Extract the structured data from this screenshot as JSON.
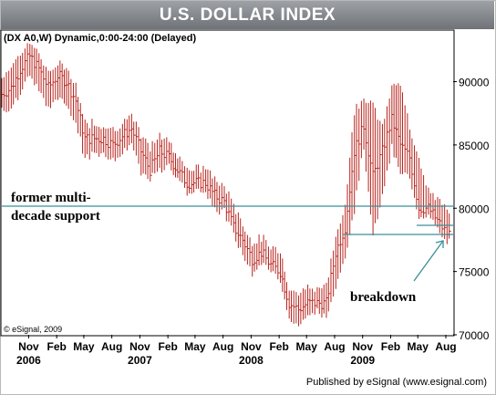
{
  "page": {
    "title": "U.S. DOLLAR INDEX",
    "chart_header": "(DX A0,W) Dynamic,0:00-24:00 (Delayed)",
    "copyright": "© eSignal, 2009",
    "footer": "Published by eSignal (www.esignal.com)",
    "annotation_support_line1": "former multi-",
    "annotation_support_line2": "decade support",
    "annotation_breakdown": "breakdown"
  },
  "colors": {
    "bars": "#b8231c",
    "support_line": "#3a8f96",
    "arrow": "#3a8f96",
    "title_band": "#80848a",
    "grid_border": "#000000"
  },
  "chart_data": {
    "type": "bar",
    "subtype": "ohlc-weekly",
    "title": "U.S. DOLLAR INDEX",
    "ylim": [
      70,
      94
    ],
    "y_ticks": [
      70000,
      75000,
      80000,
      85000,
      90000
    ],
    "y_tick_labels": [
      "70000",
      "75000",
      "80000",
      "85000",
      "90000"
    ],
    "x_ticks": [
      {
        "month": "Nov",
        "year": "2006",
        "x": "2005-11"
      },
      {
        "month": "Feb",
        "year": "",
        "x": "2006-02"
      },
      {
        "month": "May",
        "year": "",
        "x": "2006-05"
      },
      {
        "month": "Aug",
        "year": "",
        "x": "2006-08"
      },
      {
        "month": "Nov",
        "year": "2007",
        "x": "2006-11"
      },
      {
        "month": "Feb",
        "year": "",
        "x": "2007-02"
      },
      {
        "month": "May",
        "year": "",
        "x": "2007-05"
      },
      {
        "month": "Aug",
        "year": "",
        "x": "2007-08"
      },
      {
        "month": "Nov",
        "year": "2008",
        "x": "2007-11"
      },
      {
        "month": "Feb",
        "year": "",
        "x": "2008-02"
      },
      {
        "month": "May",
        "year": "",
        "x": "2008-05"
      },
      {
        "month": "Aug",
        "year": "",
        "x": "2008-08"
      },
      {
        "month": "Nov",
        "year": "2009",
        "x": "2008-11"
      },
      {
        "month": "Feb",
        "year": "",
        "x": "2009-02"
      },
      {
        "month": "May",
        "year": "",
        "x": "2009-05"
      },
      {
        "month": "Aug",
        "year": "",
        "x": "2009-08"
      }
    ],
    "x_start": "2005-08-05",
    "x_end": "2009-08-25",
    "series": [
      {
        "values": [
          [
            "2005-08-05",
            89.0,
            88.0,
            90.0
          ],
          [
            "2005-09-05",
            89.5,
            88.0,
            91.0
          ],
          [
            "2005-10-05",
            91.0,
            89.5,
            92.0
          ],
          [
            "2005-11-05",
            92.0,
            90.5,
            92.8
          ],
          [
            "2005-12-05",
            91.0,
            89.5,
            92.0
          ],
          [
            "2006-01-05",
            89.5,
            88.0,
            90.5
          ],
          [
            "2006-02-05",
            90.5,
            89.0,
            91.0
          ],
          [
            "2006-03-05",
            90.0,
            88.5,
            91.0
          ],
          [
            "2006-04-05",
            88.5,
            87.0,
            89.5
          ],
          [
            "2006-05-05",
            85.5,
            84.0,
            86.5
          ],
          [
            "2006-06-05",
            85.5,
            84.5,
            86.5
          ],
          [
            "2006-07-05",
            85.5,
            84.5,
            86.3
          ],
          [
            "2006-08-05",
            85.0,
            84.0,
            86.0
          ],
          [
            "2006-09-05",
            85.7,
            84.5,
            86.5
          ],
          [
            "2006-10-05",
            86.3,
            85.5,
            87.0
          ],
          [
            "2006-11-05",
            84.5,
            83.0,
            85.5
          ],
          [
            "2006-12-05",
            83.0,
            82.5,
            84.5
          ],
          [
            "2007-01-05",
            84.5,
            83.0,
            85.5
          ],
          [
            "2007-02-05",
            84.0,
            83.5,
            85.0
          ],
          [
            "2007-03-05",
            83.0,
            82.5,
            84.0
          ],
          [
            "2007-04-05",
            82.0,
            81.5,
            83.0
          ],
          [
            "2007-05-05",
            82.0,
            81.5,
            82.8
          ],
          [
            "2007-06-05",
            82.0,
            81.5,
            83.0
          ],
          [
            "2007-07-05",
            81.0,
            80.0,
            82.0
          ],
          [
            "2007-08-05",
            80.5,
            80.0,
            81.5
          ],
          [
            "2007-09-05",
            78.5,
            78.0,
            80.0
          ],
          [
            "2007-10-05",
            77.5,
            76.5,
            78.5
          ],
          [
            "2007-11-05",
            76.0,
            75.0,
            77.0
          ],
          [
            "2007-12-05",
            76.5,
            76.0,
            77.5
          ],
          [
            "2008-01-05",
            75.5,
            75.0,
            76.5
          ],
          [
            "2008-02-05",
            75.0,
            74.5,
            76.5
          ],
          [
            "2008-03-05",
            72.5,
            71.5,
            73.5
          ],
          [
            "2008-04-05",
            72.0,
            71.0,
            73.0
          ],
          [
            "2008-05-05",
            72.5,
            71.5,
            73.5
          ],
          [
            "2008-06-05",
            72.5,
            72.0,
            73.5
          ],
          [
            "2008-07-05",
            72.5,
            71.5,
            73.5
          ],
          [
            "2008-08-05",
            76.5,
            74.0,
            77.5
          ],
          [
            "2008-09-05",
            78.5,
            76.5,
            80.0
          ],
          [
            "2008-10-05",
            84.5,
            80.0,
            87.5
          ],
          [
            "2008-11-05",
            86.5,
            85.0,
            88.5
          ],
          [
            "2008-12-05",
            82.5,
            78.0,
            88.0
          ],
          [
            "2009-01-05",
            84.5,
            81.0,
            86.0
          ],
          [
            "2009-02-05",
            87.0,
            85.0,
            89.5
          ],
          [
            "2009-03-05",
            85.0,
            83.0,
            89.5
          ],
          [
            "2009-04-05",
            84.0,
            82.5,
            86.0
          ],
          [
            "2009-05-05",
            80.0,
            79.5,
            84.0
          ],
          [
            "2009-06-05",
            80.0,
            79.5,
            81.0
          ],
          [
            "2009-07-05",
            79.0,
            78.5,
            80.5
          ],
          [
            "2009-08-05",
            78.0,
            77.5,
            79.5
          ],
          [
            "2009-08-20",
            78.0,
            77.5,
            78.5
          ]
        ]
      }
    ],
    "annotations": [
      {
        "text": "former multi-decade support",
        "y": 80.0
      },
      {
        "text": "breakdown",
        "y": 77.8
      }
    ]
  }
}
